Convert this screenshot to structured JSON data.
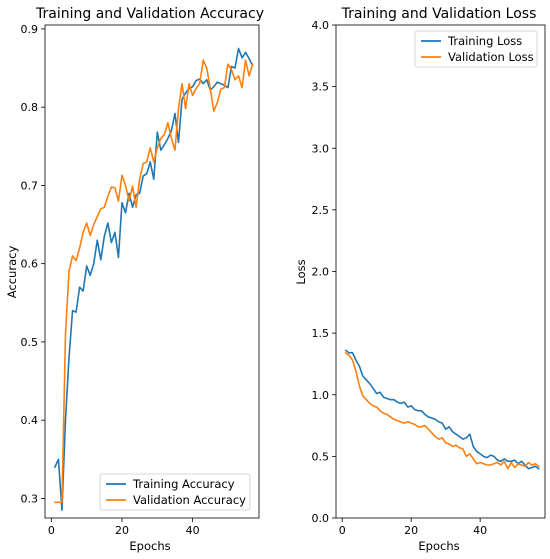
{
  "chart_data": [
    {
      "type": "line",
      "title": "Training and Validation Accuracy",
      "xlabel": "Epochs",
      "ylabel": "Accuracy",
      "xlim": [
        -1.8,
        58.8
      ],
      "ylim": [
        0.275,
        0.905
      ],
      "xticks": [
        0,
        20,
        40
      ],
      "yticks": [
        0.3,
        0.4,
        0.5,
        0.6,
        0.7,
        0.8,
        0.9
      ],
      "ytick_labels": [
        "0.3",
        "0.4",
        "0.5",
        "0.6",
        "0.7",
        "0.8",
        "0.9"
      ],
      "legend": "lower-right",
      "grid": false,
      "x": [
        1,
        2,
        3,
        4,
        5,
        6,
        7,
        8,
        9,
        10,
        11,
        12,
        13,
        14,
        15,
        16,
        17,
        18,
        19,
        20,
        21,
        22,
        23,
        24,
        25,
        26,
        27,
        28,
        29,
        30,
        31,
        32,
        33,
        34,
        35,
        36,
        37,
        38,
        39,
        40,
        41,
        42,
        43,
        44,
        45,
        46,
        47,
        48,
        49,
        50,
        51,
        52,
        53,
        54,
        55,
        56,
        57
      ],
      "series": [
        {
          "name": "Training Accuracy",
          "color": "#1f77b4",
          "values": [
            0.34,
            0.35,
            0.285,
            0.4,
            0.48,
            0.54,
            0.538,
            0.57,
            0.565,
            0.597,
            0.585,
            0.6,
            0.63,
            0.605,
            0.635,
            0.652,
            0.627,
            0.64,
            0.608,
            0.678,
            0.665,
            0.69,
            0.672,
            0.688,
            0.69,
            0.712,
            0.715,
            0.73,
            0.708,
            0.768,
            0.745,
            0.752,
            0.76,
            0.77,
            0.792,
            0.755,
            0.81,
            0.818,
            0.824,
            0.826,
            0.834,
            0.836,
            0.83,
            0.835,
            0.822,
            0.826,
            0.832,
            0.83,
            0.828,
            0.825,
            0.852,
            0.85,
            0.875,
            0.863,
            0.87,
            0.862,
            0.853
          ]
        },
        {
          "name": "Validation Accuracy",
          "color": "#ff7f0e",
          "values": [
            0.295,
            0.295,
            0.295,
            0.51,
            0.59,
            0.61,
            0.604,
            0.62,
            0.64,
            0.652,
            0.636,
            0.65,
            0.66,
            0.67,
            0.672,
            0.686,
            0.698,
            0.697,
            0.68,
            0.713,
            0.7,
            0.68,
            0.699,
            0.672,
            0.708,
            0.728,
            0.73,
            0.748,
            0.73,
            0.748,
            0.76,
            0.765,
            0.78,
            0.76,
            0.745,
            0.798,
            0.83,
            0.798,
            0.83,
            0.815,
            0.824,
            0.83,
            0.86,
            0.85,
            0.824,
            0.795,
            0.806,
            0.823,
            0.825,
            0.855,
            0.848,
            0.835,
            0.84,
            0.825,
            0.86,
            0.84,
            0.855
          ]
        }
      ]
    },
    {
      "type": "line",
      "title": "Training and Validation Loss",
      "xlabel": "Epochs",
      "ylabel": "Loss",
      "xlim": [
        -1.8,
        58.8
      ],
      "ylim": [
        0.0,
        4.0
      ],
      "xticks": [
        0,
        20,
        40
      ],
      "yticks": [
        0.0,
        0.5,
        1.0,
        1.5,
        2.0,
        2.5,
        3.0,
        3.5,
        4.0
      ],
      "ytick_labels": [
        "0.0",
        "0.5",
        "1.0",
        "1.5",
        "2.0",
        "2.5",
        "3.0",
        "3.5",
        "4.0"
      ],
      "legend": "upper-right",
      "grid": false,
      "x": [
        1,
        2,
        3,
        4,
        5,
        6,
        7,
        8,
        9,
        10,
        11,
        12,
        13,
        14,
        15,
        16,
        17,
        18,
        19,
        20,
        21,
        22,
        23,
        24,
        25,
        26,
        27,
        28,
        29,
        30,
        31,
        32,
        33,
        34,
        35,
        36,
        37,
        38,
        39,
        40,
        41,
        42,
        43,
        44,
        45,
        46,
        47,
        48,
        49,
        50,
        51,
        52,
        53,
        54,
        55,
        56,
        57
      ],
      "series": [
        {
          "name": "Training Loss",
          "color": "#1f77b4",
          "values": [
            1.36,
            1.34,
            1.34,
            1.28,
            1.23,
            1.15,
            1.12,
            1.09,
            1.05,
            1.01,
            1.02,
            0.98,
            0.97,
            0.96,
            0.96,
            0.94,
            0.93,
            0.94,
            0.9,
            0.91,
            0.88,
            0.87,
            0.87,
            0.84,
            0.82,
            0.81,
            0.8,
            0.78,
            0.77,
            0.72,
            0.74,
            0.7,
            0.68,
            0.66,
            0.64,
            0.65,
            0.68,
            0.58,
            0.54,
            0.52,
            0.5,
            0.49,
            0.51,
            0.5,
            0.47,
            0.46,
            0.48,
            0.46,
            0.46,
            0.47,
            0.44,
            0.46,
            0.43,
            0.4,
            0.41,
            0.42,
            0.4
          ]
        },
        {
          "name": "Validation Loss",
          "color": "#ff7f0e",
          "values": [
            1.34,
            1.32,
            1.28,
            1.19,
            1.07,
            0.99,
            0.96,
            0.93,
            0.91,
            0.9,
            0.87,
            0.85,
            0.84,
            0.82,
            0.8,
            0.79,
            0.78,
            0.77,
            0.78,
            0.77,
            0.76,
            0.74,
            0.74,
            0.75,
            0.72,
            0.69,
            0.66,
            0.64,
            0.65,
            0.61,
            0.6,
            0.58,
            0.59,
            0.57,
            0.56,
            0.5,
            0.52,
            0.48,
            0.44,
            0.45,
            0.44,
            0.43,
            0.43,
            0.44,
            0.45,
            0.43,
            0.46,
            0.4,
            0.45,
            0.41,
            0.44,
            0.43,
            0.42,
            0.45,
            0.43,
            0.44,
            0.42
          ]
        }
      ]
    }
  ]
}
